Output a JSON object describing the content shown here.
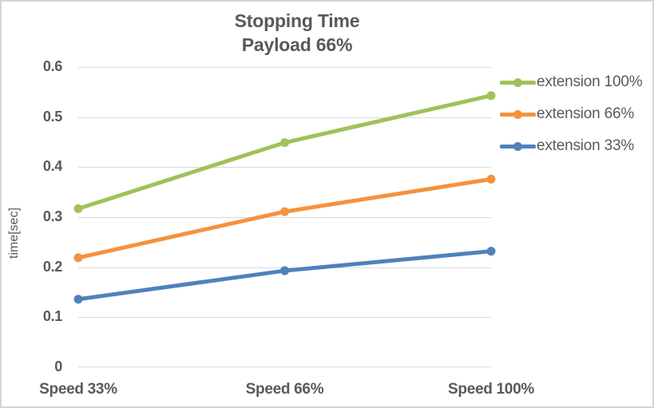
{
  "chart": {
    "title_line1": "Stopping Time",
    "title_line2": "Payload 66%",
    "y_axis_title": "time[sec]"
  },
  "chart_data": {
    "type": "line",
    "title": "Stopping Time",
    "subtitle": "Payload 66%",
    "categories": [
      "Speed 33%",
      "Speed 66%",
      "Speed 100%"
    ],
    "series": [
      {
        "name": "extension 100%",
        "color": "#a1c15a",
        "values": [
          0.317,
          0.449,
          0.543
        ]
      },
      {
        "name": "extension 66%",
        "color": "#f5923e",
        "values": [
          0.219,
          0.311,
          0.376
        ]
      },
      {
        "name": "extension 33%",
        "color": "#4e81bd",
        "values": [
          0.136,
          0.193,
          0.232
        ]
      }
    ],
    "xlabel": "",
    "ylabel": "time[sec]",
    "ylim": [
      0,
      0.6
    ],
    "y_ticks": [
      0.6,
      0.5,
      0.4,
      0.3,
      0.2,
      0.1,
      0
    ],
    "y_tick_labels": [
      "0.6",
      "0.5",
      "0.4",
      "0.3",
      "0.2",
      "0.1",
      "0"
    ],
    "grid": true,
    "legend_position": "right",
    "marker": "circle"
  },
  "style_colors": {
    "grid": "#d9d9d9",
    "text": "#595959",
    "border": "#d6d4d4",
    "background": "#ffffff"
  }
}
